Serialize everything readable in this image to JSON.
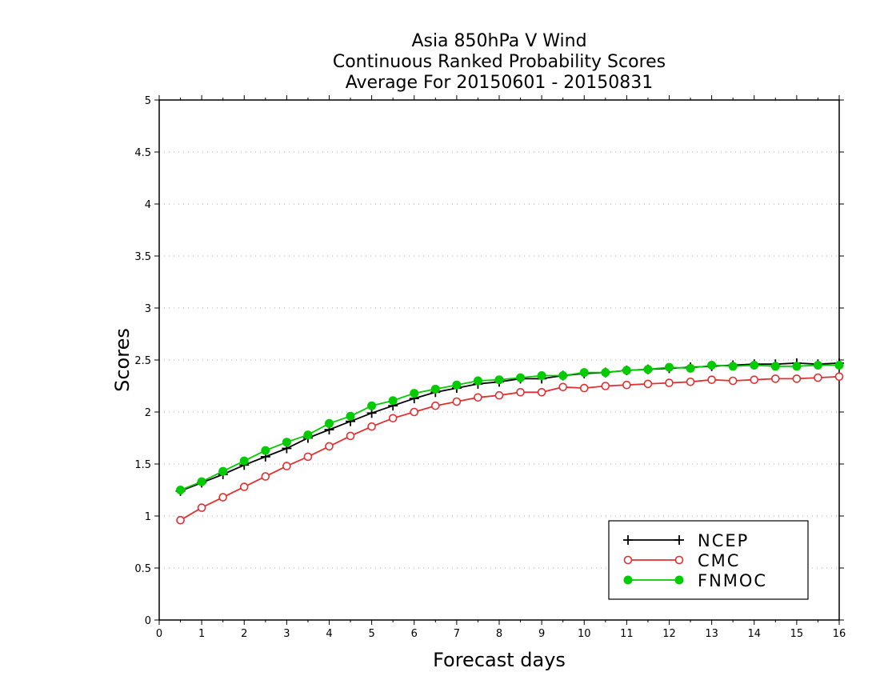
{
  "chart_data": {
    "type": "line",
    "title": [
      "Asia 850hPa V Wind",
      "Continuous Ranked Probability Scores",
      "Average For 20150601 - 20150831"
    ],
    "xlabel": "Forecast days",
    "ylabel": "Scores",
    "xlim": [
      0,
      16
    ],
    "ylim": [
      0,
      5
    ],
    "xticks": [
      0,
      1,
      2,
      3,
      4,
      5,
      6,
      7,
      8,
      9,
      10,
      11,
      12,
      13,
      14,
      15,
      16
    ],
    "yticks": [
      0,
      0.5,
      1,
      1.5,
      2,
      2.5,
      3,
      3.5,
      4,
      4.5,
      5
    ],
    "ytick_labels": [
      "0",
      "0.5",
      "1",
      "1.5",
      "2",
      "2.5",
      "3",
      "3.5",
      "4",
      "4.5",
      "5"
    ],
    "grid": "horizontal-dotted",
    "legend_position": "bottom-right",
    "x": [
      0.5,
      1,
      1.5,
      2,
      2.5,
      3,
      3.5,
      4,
      4.5,
      5,
      5.5,
      6,
      6.5,
      7,
      7.5,
      8,
      8.5,
      9,
      9.5,
      10,
      10.5,
      11,
      11.5,
      12,
      12.5,
      13,
      13.5,
      14,
      14.5,
      15,
      15.5,
      16
    ],
    "series": [
      {
        "name": "NCEP",
        "color": "#000000",
        "marker": "plus",
        "values": [
          1.24,
          1.32,
          1.4,
          1.49,
          1.57,
          1.65,
          1.75,
          1.83,
          1.91,
          1.99,
          2.06,
          2.13,
          2.19,
          2.23,
          2.27,
          2.29,
          2.32,
          2.32,
          2.35,
          2.37,
          2.38,
          2.4,
          2.41,
          2.42,
          2.43,
          2.44,
          2.45,
          2.46,
          2.46,
          2.47,
          2.46,
          2.47
        ]
      },
      {
        "name": "CMC",
        "color": "#e03030",
        "marker": "open-circle",
        "values": [
          0.96,
          1.08,
          1.18,
          1.28,
          1.38,
          1.48,
          1.57,
          1.67,
          1.77,
          1.86,
          1.94,
          2.0,
          2.06,
          2.1,
          2.14,
          2.16,
          2.19,
          2.19,
          2.24,
          2.23,
          2.25,
          2.26,
          2.27,
          2.28,
          2.29,
          2.31,
          2.3,
          2.31,
          2.32,
          2.32,
          2.33,
          2.34
        ]
      },
      {
        "name": "FNMOC",
        "color": "#00cc00",
        "marker": "filled-circle",
        "values": [
          1.25,
          1.33,
          1.43,
          1.53,
          1.63,
          1.71,
          1.78,
          1.89,
          1.96,
          2.06,
          2.11,
          2.18,
          2.22,
          2.26,
          2.3,
          2.31,
          2.33,
          2.35,
          2.35,
          2.38,
          2.38,
          2.4,
          2.41,
          2.43,
          2.42,
          2.45,
          2.44,
          2.45,
          2.44,
          2.44,
          2.45,
          2.45
        ]
      }
    ]
  }
}
